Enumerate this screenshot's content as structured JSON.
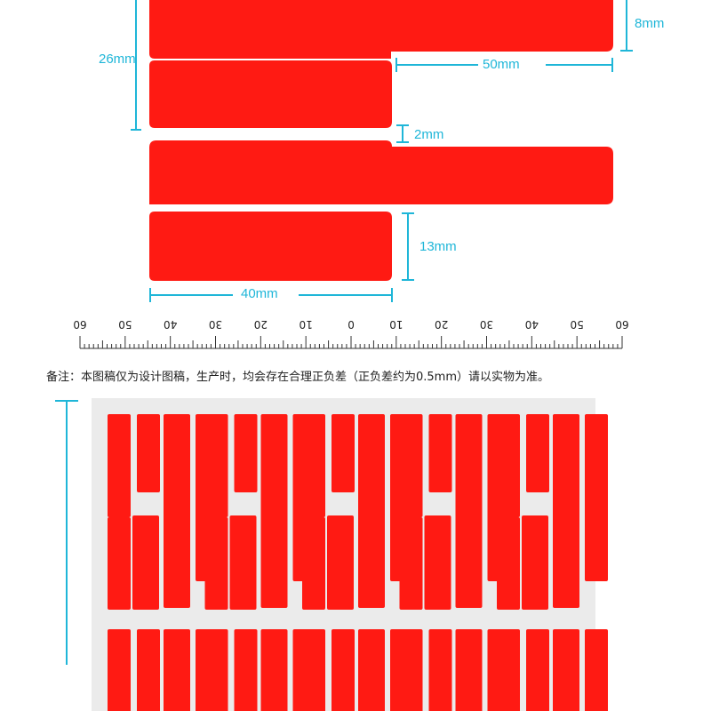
{
  "colors": {
    "label_red": "#ff1a13",
    "dimension_cyan": "#1fb6d8",
    "sheet_gray": "#ebebeb",
    "ruler": "#333333"
  },
  "dimensions": {
    "top_height": "8mm",
    "total_height": "26mm",
    "tail_length": "50mm",
    "gap": "2mm",
    "body_height": "13mm",
    "body_width": "40mm"
  },
  "ruler": {
    "tick_labels": [
      "60",
      "50",
      "40",
      "30",
      "20",
      "10",
      "0",
      "10",
      "20",
      "30",
      "40",
      "50",
      "60"
    ]
  },
  "note": "备注：本图稿仅为设计图稿，生产时，均会存在合理正负差（正负差约为0.5mm）请以实物为准。",
  "sheet": {
    "pattern_blocks": 5,
    "strips_per_block": 4
  }
}
